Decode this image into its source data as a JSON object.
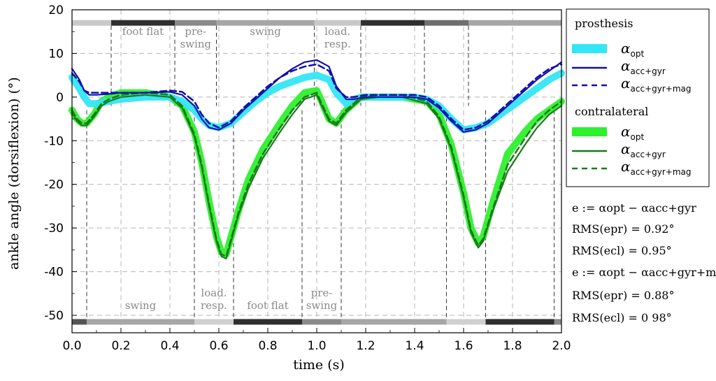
{
  "chart_data": {
    "type": "line",
    "xlabel": "time (s)",
    "ylabel": "ankle angle (dorsiflexion) (°)",
    "xlim": [
      0.0,
      2.0
    ],
    "ylim": [
      -54,
      20
    ],
    "x_ticks": [
      "0.0",
      "0.2",
      "0.4",
      "0.6",
      "0.8",
      "1.0",
      "1.2",
      "1.4",
      "1.6",
      "1.8",
      "2.0"
    ],
    "y_ticks": [
      "20",
      "10",
      "0",
      "-10",
      "-20",
      "-30",
      "-40",
      "-50"
    ],
    "grid": true,
    "legend_position": "right",
    "legend": {
      "group1_title": "prosthesis",
      "group2_title": "contralateral",
      "sym": "α",
      "sub_opt": "opt",
      "sub_accgyr": "acc+gyr",
      "sub_accgyrmag": "acc+gyr+mag"
    },
    "series": [
      {
        "key": "pr_opt",
        "group": "prosthesis",
        "label": "opt",
        "color": "#33e6f5",
        "style": "band",
        "x": [
          0,
          0.03,
          0.05,
          0.07,
          0.1,
          0.15,
          0.2,
          0.3,
          0.4,
          0.45,
          0.5,
          0.53,
          0.56,
          0.6,
          0.65,
          0.7,
          0.75,
          0.8,
          0.85,
          0.9,
          0.95,
          1.0,
          1.05,
          1.08,
          1.12,
          1.15,
          1.2,
          1.3,
          1.4,
          1.45,
          1.5,
          1.55,
          1.6,
          1.65,
          1.7,
          1.75,
          1.8,
          1.85,
          1.9,
          1.95,
          2.0
        ],
        "y": [
          4.5,
          2,
          0,
          -1.5,
          -1.5,
          -1,
          -0.5,
          0,
          0,
          -1,
          -3,
          -5,
          -6.5,
          -7,
          -6,
          -3.5,
          -1,
          1,
          2.5,
          3.5,
          4.5,
          5,
          4,
          1,
          -1.5,
          -0.5,
          0,
          0,
          0,
          -0.5,
          -2,
          -5,
          -7.5,
          -7,
          -6,
          -4,
          -2,
          0,
          2,
          4,
          5.5
        ]
      },
      {
        "key": "pr_accgyr",
        "group": "prosthesis",
        "label": "acc+gyr",
        "color": "#1010aa",
        "style": "solid",
        "x": [
          0,
          0.03,
          0.05,
          0.07,
          0.1,
          0.15,
          0.2,
          0.3,
          0.4,
          0.45,
          0.5,
          0.53,
          0.56,
          0.6,
          0.65,
          0.7,
          0.75,
          0.8,
          0.85,
          0.9,
          0.95,
          1.0,
          1.05,
          1.08,
          1.12,
          1.15,
          1.2,
          1.3,
          1.4,
          1.45,
          1.5,
          1.55,
          1.6,
          1.65,
          1.7,
          1.75,
          1.8,
          1.85,
          1.9,
          1.95,
          2.0
        ],
        "y": [
          6.5,
          4,
          1.5,
          0.5,
          0.5,
          0.7,
          1,
          1,
          1.2,
          0.5,
          -2,
          -5,
          -7,
          -7.5,
          -6,
          -3,
          -0.5,
          2,
          4.5,
          6.5,
          8,
          8.5,
          7,
          2.5,
          -0.5,
          -0.5,
          0,
          0,
          0,
          -0.5,
          -2.5,
          -5.5,
          -8,
          -7.5,
          -6,
          -3.5,
          -1,
          1.5,
          4,
          6,
          8
        ]
      },
      {
        "key": "pr_accgyrmag",
        "group": "prosthesis",
        "label": "acc+gyr+mag",
        "color": "#1010aa",
        "style": "dashed",
        "x": [
          0,
          0.03,
          0.05,
          0.07,
          0.1,
          0.15,
          0.2,
          0.3,
          0.4,
          0.45,
          0.5,
          0.53,
          0.56,
          0.6,
          0.65,
          0.7,
          0.75,
          0.8,
          0.85,
          0.9,
          0.95,
          1.0,
          1.05,
          1.08,
          1.12,
          1.15,
          1.2,
          1.3,
          1.4,
          1.45,
          1.5,
          1.55,
          1.6,
          1.65,
          1.7,
          1.75,
          1.8,
          1.85,
          1.9,
          1.95,
          2.0
        ],
        "y": [
          5.5,
          3.5,
          1.5,
          1,
          1,
          1,
          1,
          1,
          1.5,
          1.2,
          -1,
          -4,
          -6,
          -7,
          -5.5,
          -2.5,
          0,
          2.5,
          4.5,
          6,
          7,
          7.5,
          6,
          2,
          0,
          0,
          0.5,
          0.5,
          0.5,
          0,
          -2,
          -5,
          -7.5,
          -7,
          -5.5,
          -3,
          -0.5,
          2,
          4.5,
          6.5,
          7.5
        ]
      },
      {
        "key": "cl_opt",
        "group": "contralateral",
        "label": "opt",
        "color": "#2ef02e",
        "style": "band",
        "x": [
          0,
          0.02,
          0.04,
          0.06,
          0.09,
          0.12,
          0.15,
          0.2,
          0.3,
          0.4,
          0.45,
          0.5,
          0.53,
          0.56,
          0.59,
          0.61,
          0.63,
          0.65,
          0.68,
          0.72,
          0.78,
          0.85,
          0.9,
          0.95,
          1.0,
          1.02,
          1.05,
          1.08,
          1.12,
          1.18,
          1.25,
          1.35,
          1.45,
          1.5,
          1.55,
          1.6,
          1.63,
          1.66,
          1.68,
          1.72,
          1.78,
          1.85,
          1.9,
          1.95,
          2.0
        ],
        "y": [
          -3,
          -5,
          -6,
          -6,
          -4,
          -1,
          0,
          1,
          1,
          0,
          -2,
          -8,
          -15,
          -24,
          -32,
          -35.5,
          -36,
          -32,
          -26,
          -19,
          -12,
          -6,
          -2,
          1,
          1.5,
          -1,
          -5,
          -6,
          -3,
          0,
          0,
          0,
          -1,
          -4,
          -11,
          -22,
          -30,
          -33.5,
          -32,
          -24,
          -13,
          -8,
          -5,
          -3,
          -1
        ]
      },
      {
        "key": "cl_accgyr",
        "group": "contralateral",
        "label": "acc+gyr",
        "color": "#1a7a1a",
        "style": "solid",
        "x": [
          0,
          0.02,
          0.04,
          0.06,
          0.09,
          0.12,
          0.15,
          0.2,
          0.3,
          0.4,
          0.45,
          0.5,
          0.53,
          0.56,
          0.59,
          0.61,
          0.63,
          0.65,
          0.68,
          0.72,
          0.78,
          0.85,
          0.9,
          0.95,
          1.0,
          1.02,
          1.05,
          1.08,
          1.12,
          1.18,
          1.25,
          1.35,
          1.45,
          1.5,
          1.55,
          1.6,
          1.63,
          1.66,
          1.68,
          1.72,
          1.78,
          1.85,
          1.9,
          1.95,
          2.0
        ],
        "y": [
          -3.5,
          -5.5,
          -6.5,
          -6.5,
          -4.5,
          -2,
          -1,
          0,
          0.5,
          0,
          -2.5,
          -9,
          -16,
          -25,
          -33,
          -36.5,
          -37,
          -33,
          -27,
          -21,
          -14,
          -8,
          -4,
          -0.5,
          0.5,
          -2,
          -5.5,
          -6.5,
          -3.5,
          -0.5,
          0,
          0,
          -1.5,
          -5,
          -12,
          -23,
          -31,
          -34.5,
          -33,
          -26,
          -17,
          -11,
          -7,
          -4,
          -2
        ]
      },
      {
        "key": "cl_accgyrmag",
        "group": "contralateral",
        "label": "acc+gyr+mag",
        "color": "#1a7a1a",
        "style": "dashed",
        "x": [
          0,
          0.02,
          0.04,
          0.06,
          0.09,
          0.12,
          0.15,
          0.2,
          0.3,
          0.4,
          0.45,
          0.5,
          0.53,
          0.56,
          0.59,
          0.61,
          0.63,
          0.65,
          0.68,
          0.72,
          0.78,
          0.85,
          0.9,
          0.95,
          1.0,
          1.02,
          1.05,
          1.08,
          1.12,
          1.18,
          1.25,
          1.35,
          1.45,
          1.5,
          1.55,
          1.6,
          1.63,
          1.66,
          1.68,
          1.72,
          1.78,
          1.85,
          1.9,
          1.95,
          2.0
        ],
        "y": [
          -3,
          -5,
          -6,
          -6,
          -4,
          -1.5,
          -0.5,
          0.5,
          1,
          0.5,
          -2,
          -8.5,
          -15.5,
          -24.5,
          -32.5,
          -36,
          -36.5,
          -32.5,
          -26.5,
          -20,
          -13,
          -7,
          -3,
          0,
          1,
          -1.5,
          -5,
          -6,
          -3,
          0,
          0.5,
          0.5,
          -1,
          -4.5,
          -11.5,
          -22.5,
          -30.5,
          -34,
          -32.5,
          -25.5,
          -15.5,
          -9.5,
          -5.5,
          -3,
          -1
        ]
      }
    ],
    "phases_top": [
      {
        "start": 0.0,
        "end": 0.16,
        "shade": "#c8c8c8"
      },
      {
        "start": 0.16,
        "end": 0.42,
        "shade": "#2f2f2f",
        "label": "foot flat"
      },
      {
        "start": 0.42,
        "end": 0.59,
        "shade": "#8a8a8a",
        "label": "pre-\nswing"
      },
      {
        "start": 0.59,
        "end": 0.99,
        "shade": "#a6a6a6",
        "label": "swing"
      },
      {
        "start": 0.99,
        "end": 1.18,
        "shade": "#c8c8c8",
        "label": "load.\nresp."
      },
      {
        "start": 1.18,
        "end": 1.44,
        "shade": "#2f2f2f"
      },
      {
        "start": 1.44,
        "end": 1.62,
        "shade": "#6e6e6e"
      },
      {
        "start": 1.62,
        "end": 2.0,
        "shade": "#a6a6a6"
      }
    ],
    "phases_bottom": [
      {
        "start": 0.0,
        "end": 0.06,
        "shade": "#555555"
      },
      {
        "start": 0.06,
        "end": 0.5,
        "shade": "#a6a6a6",
        "label": "swing"
      },
      {
        "start": 0.5,
        "end": 0.66,
        "shade": "#d0d0d0",
        "label": "load.\nresp."
      },
      {
        "start": 0.66,
        "end": 0.94,
        "shade": "#2f2f2f",
        "label": "foot flat"
      },
      {
        "start": 0.94,
        "end": 1.1,
        "shade": "#8a8a8a",
        "label": "pre-\nswing"
      },
      {
        "start": 1.1,
        "end": 1.53,
        "shade": "#a6a6a6"
      },
      {
        "start": 1.53,
        "end": 1.69,
        "shade": "#d0d0d0"
      },
      {
        "start": 1.69,
        "end": 1.97,
        "shade": "#2f2f2f"
      },
      {
        "start": 1.97,
        "end": 2.0,
        "shade": "#8a8a8a"
      }
    ],
    "event_lines_top": [
      0.16,
      0.42,
      0.59,
      0.99,
      1.18,
      1.44,
      1.62
    ],
    "event_lines_bottom": [
      0.06,
      0.5,
      0.66,
      0.94,
      1.1,
      1.53,
      1.69,
      1.97
    ],
    "annotations": {
      "def1": "e := αopt − αacc+gyr",
      "rms_pr_1": "RMS(epr) = 0.92°",
      "rms_cl_1": "RMS(ecl) = 0.95°",
      "def2": "e := αopt − αacc+gyr+mag",
      "rms_pr_2": "RMS(epr) = 0.88°",
      "rms_cl_2": "RMS(ecl) = 0 98°"
    }
  }
}
